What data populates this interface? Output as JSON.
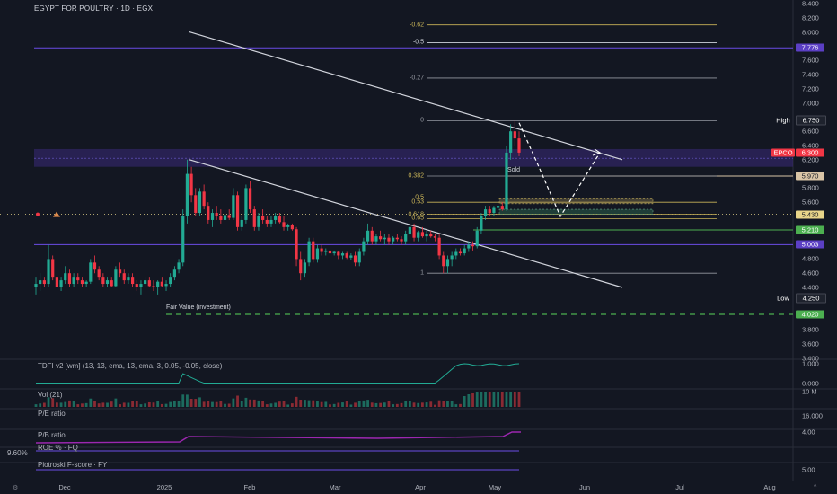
{
  "header": {
    "title": "EGYPT FOR POULTRY · 1D · EGX"
  },
  "chart_data": {
    "type": "candlestick",
    "symbol": "EPCO",
    "price_axis_ticks": [
      8.4,
      8.2,
      8.0,
      7.8,
      7.6,
      7.4,
      7.2,
      7.0,
      6.8,
      6.6,
      6.4,
      6.2,
      6.0,
      5.8,
      5.6,
      5.4,
      5.2,
      5.0,
      4.8,
      4.6,
      4.4,
      4.2,
      4.0,
      3.8,
      3.6,
      3.4
    ],
    "ylim": [
      3.4,
      8.4
    ],
    "x_labels": [
      "Dec",
      "2025",
      "Feb",
      "Mar",
      "Apr",
      "May",
      "Jun",
      "Jul",
      "Aug"
    ],
    "price_tags": [
      {
        "label": "7.776",
        "value": 7.776,
        "color": "#5b3fc4"
      },
      {
        "label": "6.750",
        "value": 6.75,
        "color": "#1e222d",
        "prefix": "High"
      },
      {
        "label": "6.300",
        "value": 6.3,
        "color": "#f23645",
        "prefix": "EPCO"
      },
      {
        "label": "5.970",
        "value": 5.97,
        "color": "#d9c4a6",
        "text_color": "#131722"
      },
      {
        "label": "5.430",
        "value": 5.43,
        "color": "#e8d58a",
        "text_color": "#131722"
      },
      {
        "label": "5.210",
        "value": 5.21,
        "color": "#4caf50"
      },
      {
        "label": "5.003",
        "value": 5.003,
        "color": "#5b3fc4"
      },
      {
        "label": "4.250",
        "value": 4.25,
        "color": "#1e222d",
        "prefix": "Low"
      },
      {
        "label": "4.020",
        "value": 4.02,
        "color": "#4caf50"
      }
    ],
    "fib_levels": [
      {
        "label": "-0.62",
        "value": 8.1
      },
      {
        "label": "-0.5",
        "value": 7.85
      },
      {
        "label": "-0.27",
        "value": 7.35
      },
      {
        "label": "0",
        "value": 6.75
      },
      {
        "label": "0.382",
        "value": 5.97
      },
      {
        "label": "0.5",
        "value": 5.66
      },
      {
        "label": "0.53",
        "value": 5.6
      },
      {
        "label": "0.618",
        "value": 5.43
      },
      {
        "label": "0.65",
        "value": 5.37
      },
      {
        "label": "1",
        "value": 4.6
      }
    ],
    "annotations": {
      "sold": "Sold",
      "fair_value": "Fair Value (investment)"
    },
    "indicator_panes": [
      {
        "label": "TDFI v2 [wm] (13, 13, ema, 13, ema, 3, 0.05, -0.05, close)",
        "axis": [
          "1.000",
          "0.000"
        ]
      },
      {
        "label": "Vol (21)",
        "axis": [
          "10 M"
        ]
      },
      {
        "label": "P/E ratio",
        "axis": [
          "16.000"
        ]
      },
      {
        "label": "P/B ratio",
        "axis": [
          "4.00"
        ]
      },
      {
        "label": "ROE % · FQ",
        "axis": [],
        "left_value": "9.60%"
      },
      {
        "label": "Piotroski F-score · FY",
        "axis": [
          "5.00"
        ]
      }
    ],
    "candles": [
      {
        "o": 4.4,
        "h": 4.55,
        "l": 4.3,
        "c": 4.45
      },
      {
        "o": 4.45,
        "h": 4.6,
        "l": 4.35,
        "c": 4.5
      },
      {
        "o": 4.5,
        "h": 4.55,
        "l": 4.4,
        "c": 4.45
      },
      {
        "o": 4.45,
        "h": 5.0,
        "l": 4.4,
        "c": 4.8
      },
      {
        "o": 4.8,
        "h": 4.85,
        "l": 4.5,
        "c": 4.55
      },
      {
        "o": 4.55,
        "h": 4.6,
        "l": 4.35,
        "c": 4.4
      },
      {
        "o": 4.4,
        "h": 4.55,
        "l": 4.35,
        "c": 4.5
      },
      {
        "o": 4.5,
        "h": 4.7,
        "l": 4.45,
        "c": 4.6
      },
      {
        "o": 4.6,
        "h": 4.65,
        "l": 4.4,
        "c": 4.45
      },
      {
        "o": 4.45,
        "h": 4.6,
        "l": 4.4,
        "c": 4.55
      },
      {
        "o": 4.55,
        "h": 4.6,
        "l": 4.45,
        "c": 4.5
      },
      {
        "o": 4.5,
        "h": 4.55,
        "l": 4.4,
        "c": 4.45
      },
      {
        "o": 4.45,
        "h": 4.5,
        "l": 4.4,
        "c": 4.48
      },
      {
        "o": 4.48,
        "h": 4.8,
        "l": 4.45,
        "c": 4.75
      },
      {
        "o": 4.75,
        "h": 4.85,
        "l": 4.6,
        "c": 4.65
      },
      {
        "o": 4.65,
        "h": 4.7,
        "l": 4.5,
        "c": 4.55
      },
      {
        "o": 4.55,
        "h": 4.6,
        "l": 4.4,
        "c": 4.45
      },
      {
        "o": 4.45,
        "h": 4.55,
        "l": 4.4,
        "c": 4.5
      },
      {
        "o": 4.5,
        "h": 4.55,
        "l": 4.4,
        "c": 4.42
      },
      {
        "o": 4.42,
        "h": 4.7,
        "l": 4.4,
        "c": 4.65
      },
      {
        "o": 4.65,
        "h": 4.75,
        "l": 4.55,
        "c": 4.6
      },
      {
        "o": 4.6,
        "h": 4.65,
        "l": 4.45,
        "c": 4.5
      },
      {
        "o": 4.5,
        "h": 4.6,
        "l": 4.45,
        "c": 4.55
      },
      {
        "o": 4.55,
        "h": 4.6,
        "l": 4.4,
        "c": 4.45
      },
      {
        "o": 4.45,
        "h": 4.5,
        "l": 4.35,
        "c": 4.4
      },
      {
        "o": 4.4,
        "h": 4.5,
        "l": 4.3,
        "c": 4.45
      },
      {
        "o": 4.45,
        "h": 4.55,
        "l": 4.4,
        "c": 4.5
      },
      {
        "o": 4.5,
        "h": 4.55,
        "l": 4.4,
        "c": 4.42
      },
      {
        "o": 4.42,
        "h": 4.5,
        "l": 4.35,
        "c": 4.4
      },
      {
        "o": 4.4,
        "h": 4.5,
        "l": 4.3,
        "c": 4.48
      },
      {
        "o": 4.48,
        "h": 4.55,
        "l": 4.4,
        "c": 4.42
      },
      {
        "o": 4.42,
        "h": 4.5,
        "l": 4.35,
        "c": 4.45
      },
      {
        "o": 4.45,
        "h": 4.6,
        "l": 4.4,
        "c": 4.55
      },
      {
        "o": 4.55,
        "h": 4.7,
        "l": 4.5,
        "c": 4.65
      },
      {
        "o": 4.65,
        "h": 4.8,
        "l": 4.6,
        "c": 4.75
      },
      {
        "o": 4.75,
        "h": 5.5,
        "l": 4.7,
        "c": 5.4
      },
      {
        "o": 5.4,
        "h": 6.2,
        "l": 5.3,
        "c": 6.0
      },
      {
        "o": 6.0,
        "h": 6.1,
        "l": 5.6,
        "c": 5.7
      },
      {
        "o": 5.7,
        "h": 5.8,
        "l": 5.4,
        "c": 5.45
      },
      {
        "o": 5.45,
        "h": 5.8,
        "l": 5.4,
        "c": 5.75
      },
      {
        "o": 5.75,
        "h": 5.85,
        "l": 5.5,
        "c": 5.55
      },
      {
        "o": 5.55,
        "h": 5.6,
        "l": 5.3,
        "c": 5.35
      },
      {
        "o": 5.35,
        "h": 5.5,
        "l": 5.25,
        "c": 5.45
      },
      {
        "o": 5.45,
        "h": 5.55,
        "l": 5.35,
        "c": 5.4
      },
      {
        "o": 5.4,
        "h": 5.5,
        "l": 5.3,
        "c": 5.35
      },
      {
        "o": 5.35,
        "h": 5.45,
        "l": 5.3,
        "c": 5.42
      },
      {
        "o": 5.42,
        "h": 5.5,
        "l": 5.35,
        "c": 5.38
      },
      {
        "o": 5.38,
        "h": 5.8,
        "l": 5.35,
        "c": 5.7
      },
      {
        "o": 5.7,
        "h": 5.75,
        "l": 5.2,
        "c": 5.25
      },
      {
        "o": 5.25,
        "h": 5.4,
        "l": 5.2,
        "c": 5.35
      },
      {
        "o": 5.35,
        "h": 5.85,
        "l": 5.3,
        "c": 5.8
      },
      {
        "o": 5.8,
        "h": 5.9,
        "l": 5.45,
        "c": 5.5
      },
      {
        "o": 5.5,
        "h": 5.55,
        "l": 5.2,
        "c": 5.25
      },
      {
        "o": 5.25,
        "h": 5.45,
        "l": 5.2,
        "c": 5.4
      },
      {
        "o": 5.4,
        "h": 5.5,
        "l": 5.3,
        "c": 5.35
      },
      {
        "o": 5.35,
        "h": 5.4,
        "l": 5.25,
        "c": 5.3
      },
      {
        "o": 5.3,
        "h": 5.4,
        "l": 5.25,
        "c": 5.35
      },
      {
        "o": 5.35,
        "h": 5.45,
        "l": 5.3,
        "c": 5.4
      },
      {
        "o": 5.4,
        "h": 5.45,
        "l": 5.3,
        "c": 5.32
      },
      {
        "o": 5.32,
        "h": 5.4,
        "l": 5.2,
        "c": 5.25
      },
      {
        "o": 5.25,
        "h": 5.3,
        "l": 5.2,
        "c": 5.28
      },
      {
        "o": 5.28,
        "h": 5.3,
        "l": 5.2,
        "c": 5.22
      },
      {
        "o": 5.22,
        "h": 5.25,
        "l": 4.7,
        "c": 4.8
      },
      {
        "o": 4.8,
        "h": 4.9,
        "l": 4.5,
        "c": 4.6
      },
      {
        "o": 4.6,
        "h": 4.8,
        "l": 4.55,
        "c": 4.75
      },
      {
        "o": 4.75,
        "h": 5.1,
        "l": 4.7,
        "c": 5.05
      },
      {
        "o": 5.05,
        "h": 5.1,
        "l": 4.75,
        "c": 4.8
      },
      {
        "o": 4.8,
        "h": 5.0,
        "l": 4.75,
        "c": 4.95
      },
      {
        "o": 4.95,
        "h": 5.0,
        "l": 4.85,
        "c": 4.9
      },
      {
        "o": 4.9,
        "h": 4.95,
        "l": 4.85,
        "c": 4.92
      },
      {
        "o": 4.92,
        "h": 4.95,
        "l": 4.85,
        "c": 4.88
      },
      {
        "o": 4.88,
        "h": 4.92,
        "l": 4.85,
        "c": 4.9
      },
      {
        "o": 4.9,
        "h": 4.92,
        "l": 4.8,
        "c": 4.85
      },
      {
        "o": 4.85,
        "h": 4.9,
        "l": 4.8,
        "c": 4.88
      },
      {
        "o": 4.88,
        "h": 4.9,
        "l": 4.8,
        "c": 4.82
      },
      {
        "o": 4.82,
        "h": 4.88,
        "l": 4.78,
        "c": 4.85
      },
      {
        "o": 4.85,
        "h": 4.9,
        "l": 4.7,
        "c": 4.75
      },
      {
        "o": 4.75,
        "h": 4.95,
        "l": 4.7,
        "c": 4.9
      },
      {
        "o": 4.9,
        "h": 5.1,
        "l": 4.85,
        "c": 5.05
      },
      {
        "o": 5.05,
        "h": 5.3,
        "l": 5.0,
        "c": 5.2
      },
      {
        "o": 5.2,
        "h": 5.25,
        "l": 5.0,
        "c": 5.05
      },
      {
        "o": 5.05,
        "h": 5.15,
        "l": 5.0,
        "c": 5.12
      },
      {
        "o": 5.12,
        "h": 5.2,
        "l": 5.05,
        "c": 5.08
      },
      {
        "o": 5.08,
        "h": 5.15,
        "l": 5.0,
        "c": 5.1
      },
      {
        "o": 5.1,
        "h": 5.15,
        "l": 5.0,
        "c": 5.05
      },
      {
        "o": 5.05,
        "h": 5.12,
        "l": 5.0,
        "c": 5.1
      },
      {
        "o": 5.1,
        "h": 5.15,
        "l": 5.05,
        "c": 5.08
      },
      {
        "o": 5.08,
        "h": 5.12,
        "l": 5.0,
        "c": 5.05
      },
      {
        "o": 5.05,
        "h": 5.2,
        "l": 5.0,
        "c": 5.15
      },
      {
        "o": 5.15,
        "h": 5.3,
        "l": 5.1,
        "c": 5.25
      },
      {
        "o": 5.25,
        "h": 5.3,
        "l": 5.05,
        "c": 5.1
      },
      {
        "o": 5.1,
        "h": 5.2,
        "l": 5.05,
        "c": 5.18
      },
      {
        "o": 5.18,
        "h": 5.25,
        "l": 5.1,
        "c": 5.12
      },
      {
        "o": 5.12,
        "h": 5.2,
        "l": 5.05,
        "c": 5.15
      },
      {
        "o": 5.15,
        "h": 5.2,
        "l": 5.1,
        "c": 5.12
      },
      {
        "o": 5.12,
        "h": 5.15,
        "l": 5.05,
        "c": 5.1
      },
      {
        "o": 5.1,
        "h": 5.15,
        "l": 4.8,
        "c": 4.85
      },
      {
        "o": 4.85,
        "h": 4.9,
        "l": 4.6,
        "c": 4.7
      },
      {
        "o": 4.7,
        "h": 4.85,
        "l": 4.6,
        "c": 4.8
      },
      {
        "o": 4.8,
        "h": 4.9,
        "l": 4.7,
        "c": 4.85
      },
      {
        "o": 4.85,
        "h": 4.95,
        "l": 4.8,
        "c": 4.9
      },
      {
        "o": 4.9,
        "h": 4.95,
        "l": 4.85,
        "c": 4.88
      },
      {
        "o": 4.88,
        "h": 5.0,
        "l": 4.85,
        "c": 4.95
      },
      {
        "o": 4.95,
        "h": 5.05,
        "l": 4.9,
        "c": 5.0
      },
      {
        "o": 5.0,
        "h": 5.05,
        "l": 4.92,
        "c": 4.98
      },
      {
        "o": 4.98,
        "h": 5.25,
        "l": 4.95,
        "c": 5.2
      },
      {
        "o": 5.2,
        "h": 5.45,
        "l": 5.15,
        "c": 5.4
      },
      {
        "o": 5.4,
        "h": 5.55,
        "l": 5.35,
        "c": 5.5
      },
      {
        "o": 5.5,
        "h": 5.55,
        "l": 5.4,
        "c": 5.45
      },
      {
        "o": 5.45,
        "h": 5.55,
        "l": 5.4,
        "c": 5.52
      },
      {
        "o": 5.52,
        "h": 5.6,
        "l": 5.45,
        "c": 5.55
      },
      {
        "o": 5.55,
        "h": 5.6,
        "l": 5.48,
        "c": 5.5
      },
      {
        "o": 5.5,
        "h": 6.4,
        "l": 5.48,
        "c": 6.3
      },
      {
        "o": 6.3,
        "h": 6.7,
        "l": 6.2,
        "c": 6.6
      },
      {
        "o": 6.6,
        "h": 6.75,
        "l": 6.4,
        "c": 6.5
      },
      {
        "o": 6.5,
        "h": 6.6,
        "l": 6.25,
        "c": 6.3
      }
    ]
  }
}
